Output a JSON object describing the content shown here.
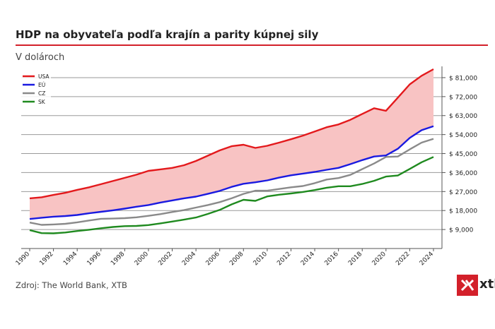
{
  "header": {
    "title": "HDP na obyvateľa podľa krajín a parity kúpnej sily",
    "subtitle": "V dolároch"
  },
  "footer": {
    "source": "Zdroj: The World Bank, XTB",
    "logo_text": "xtb"
  },
  "colors": {
    "accent": "#d3202a",
    "usa": "#e3191c",
    "eu": "#1a1ae0",
    "cz": "#8a8a8a",
    "sk": "#1f8a1f",
    "band_fill": "#f8c3c3",
    "grid": "#9a9a9a"
  },
  "chart_data": {
    "type": "line",
    "title": "HDP na obyvateľa podľa krajín a parity kúpnej sily",
    "ylabel": "V dolároch",
    "xlabel": "",
    "x": [
      1990,
      1991,
      1992,
      1993,
      1994,
      1995,
      1996,
      1997,
      1998,
      1999,
      2000,
      2001,
      2002,
      2003,
      2004,
      2005,
      2006,
      2007,
      2008,
      2009,
      2010,
      2011,
      2012,
      2013,
      2014,
      2015,
      2016,
      2017,
      2018,
      2019,
      2020,
      2021,
      2022,
      2023,
      2024
    ],
    "xticks": [
      "1990",
      "1992",
      "1994",
      "1996",
      "1998",
      "2000",
      "2002",
      "2004",
      "2006",
      "2008",
      "2010",
      "2012",
      "2014",
      "2016",
      "2018",
      "2020",
      "2022",
      "2024"
    ],
    "ylim": [
      0,
      85000
    ],
    "yticks": [
      9000,
      18000,
      27000,
      36000,
      45000,
      54000,
      63000,
      72000,
      81000
    ],
    "ytick_labels": [
      "$ 9,000",
      "$ 18,000",
      "$ 27,000",
      "$ 36,000",
      "$ 45,000",
      "$ 54,000",
      "$ 63,000",
      "$ 72,000",
      "$ 81,000"
    ],
    "shaded_between": [
      "USA",
      "EÚ"
    ],
    "legend_position": "top-left",
    "series": [
      {
        "name": "USA",
        "color": "#e3191c",
        "values": [
          23800,
          24300,
          25400,
          26400,
          27800,
          29000,
          30500,
          32000,
          33500,
          35000,
          36800,
          37500,
          38200,
          39500,
          41500,
          44000,
          46500,
          48500,
          49200,
          47700,
          48700,
          50200,
          51800,
          53500,
          55500,
          57500,
          58800,
          61000,
          63800,
          66500,
          65300,
          71500,
          77800,
          81900,
          85000
        ]
      },
      {
        "name": "EÚ",
        "color": "#1a1ae0",
        "values": [
          14000,
          14600,
          15100,
          15400,
          15900,
          16700,
          17400,
          18100,
          18900,
          19800,
          20600,
          21800,
          22800,
          23800,
          24600,
          25900,
          27300,
          29200,
          30700,
          31400,
          32300,
          33600,
          34700,
          35500,
          36300,
          37300,
          38200,
          40000,
          41900,
          43600,
          44100,
          47300,
          52400,
          56100,
          58000
        ]
      },
      {
        "name": "CZ",
        "color": "#8a8a8a",
        "values": [
          12300,
          11200,
          11400,
          11700,
          12400,
          13300,
          14100,
          14200,
          14400,
          14800,
          15500,
          16300,
          17300,
          18200,
          19400,
          20600,
          22000,
          23800,
          25900,
          27400,
          27400,
          28200,
          29000,
          29600,
          31000,
          32700,
          33400,
          34900,
          37600,
          40300,
          43400,
          43600,
          47000,
          50200,
          52000
        ]
      },
      {
        "name": "SK",
        "color": "#1f8a1f",
        "values": [
          8700,
          7300,
          7200,
          7600,
          8300,
          8900,
          9600,
          10200,
          10600,
          10700,
          11100,
          11900,
          12800,
          13700,
          14700,
          16400,
          18300,
          20900,
          23100,
          22600,
          24700,
          25500,
          26100,
          26800,
          27700,
          28800,
          29500,
          29500,
          30600,
          32100,
          34100,
          34600,
          37700,
          40900,
          43400
        ]
      }
    ]
  }
}
